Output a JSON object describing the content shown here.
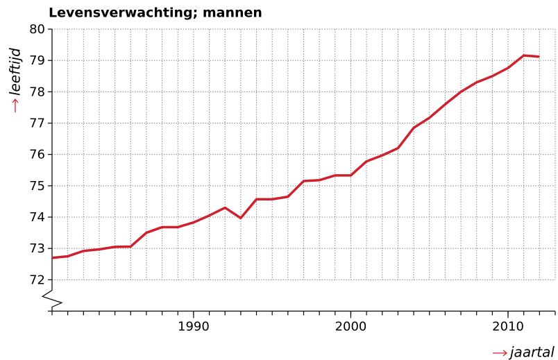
{
  "chart_data": {
    "type": "line",
    "title": "Levensverwachting; mannen",
    "ylabel": "leeftijd",
    "xlabel": "jaartal",
    "x": [
      1981,
      1982,
      1983,
      1984,
      1985,
      1986,
      1987,
      1988,
      1989,
      1990,
      1991,
      1992,
      1993,
      1994,
      1995,
      1996,
      1997,
      1998,
      1999,
      2000,
      2001,
      2002,
      2003,
      2004,
      2005,
      2006,
      2007,
      2008,
      2009,
      2010,
      2011,
      2012
    ],
    "series": [
      {
        "name": "mannen",
        "color": "#d0202e",
        "values": [
          72.7,
          72.75,
          72.92,
          72.97,
          73.05,
          73.06,
          73.5,
          73.68,
          73.68,
          73.83,
          74.05,
          74.3,
          73.97,
          74.57,
          74.57,
          74.65,
          75.15,
          75.18,
          75.33,
          75.33,
          75.78,
          75.97,
          76.2,
          76.85,
          77.17,
          77.6,
          78.0,
          78.3,
          78.5,
          78.76,
          79.16,
          79.12
        ]
      }
    ],
    "xlim": [
      1981,
      2013
    ],
    "ylim": [
      71,
      80
    ],
    "xticks": [
      1990,
      2000,
      2010
    ],
    "yticks": [
      72,
      73,
      74,
      75,
      76,
      77,
      78,
      79,
      80
    ],
    "x_grid_step": 1,
    "grid": true,
    "axis_break": true
  }
}
